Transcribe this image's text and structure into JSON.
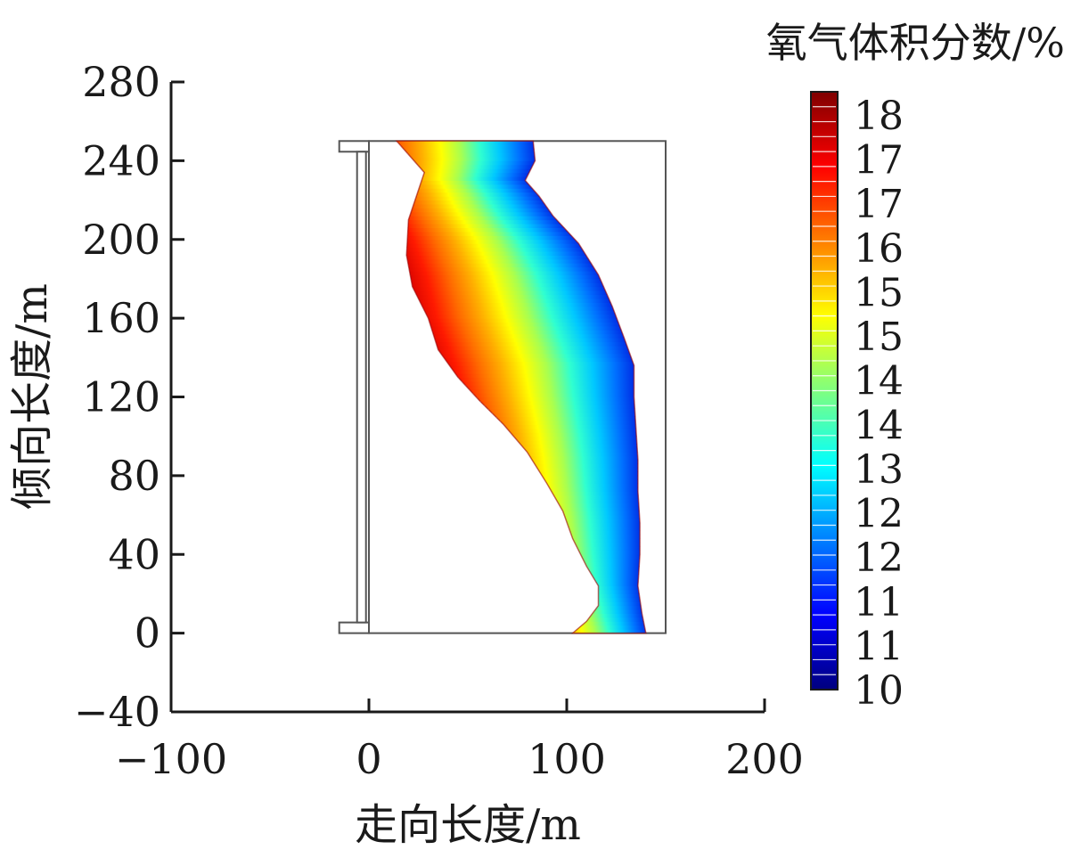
{
  "chart_data": {
    "type": "heatmap",
    "xlabel": "走向长度/m",
    "ylabel": "倾向长度/m",
    "xlim": [
      -100,
      200
    ],
    "ylim": [
      -40,
      280
    ],
    "xticks": [
      "−100",
      "0",
      "100",
      "200"
    ],
    "xtick_values": [
      -100,
      0,
      100,
      200
    ],
    "yticks": [
      "−40",
      "0",
      "40",
      "80",
      "120",
      "160",
      "200",
      "240",
      "280"
    ],
    "ytick_values": [
      -40,
      0,
      40,
      80,
      120,
      160,
      200,
      240,
      280
    ],
    "colorbar": {
      "title": "氧气体积分数/%",
      "range": [
        10,
        18.3
      ],
      "tick_labels": [
        "18",
        "17",
        "17",
        "16",
        "15",
        "15",
        "14",
        "14",
        "13",
        "12",
        "12",
        "11",
        "11",
        "10"
      ],
      "colors": [
        "#00007f",
        "#0000ff",
        "#007fff",
        "#00ffff",
        "#7fff7f",
        "#ffff00",
        "#ff7f00",
        "#ff0000",
        "#7f0000"
      ]
    },
    "domain_box": {
      "x": [
        0,
        150
      ],
      "y": [
        0,
        250
      ]
    },
    "side_structure": {
      "x": [
        -15,
        -2
      ],
      "y": [
        0,
        250
      ]
    },
    "gas_region": {
      "left_edge": [
        [
          0,
          103
        ],
        [
          6,
          110
        ],
        [
          14,
          116
        ],
        [
          24,
          116
        ],
        [
          34,
          110
        ],
        [
          48,
          103
        ],
        [
          62,
          98
        ],
        [
          76,
          90
        ],
        [
          92,
          80
        ],
        [
          106,
          68
        ],
        [
          118,
          56
        ],
        [
          130,
          45
        ],
        [
          144,
          35
        ],
        [
          160,
          30
        ],
        [
          176,
          22
        ],
        [
          192,
          19
        ],
        [
          210,
          20
        ],
        [
          222,
          24
        ],
        [
          234,
          28
        ],
        [
          250,
          14
        ]
      ],
      "right_edge": [
        [
          0,
          140
        ],
        [
          10,
          138
        ],
        [
          24,
          136
        ],
        [
          40,
          137
        ],
        [
          56,
          137
        ],
        [
          72,
          136
        ],
        [
          88,
          136
        ],
        [
          104,
          135
        ],
        [
          120,
          134
        ],
        [
          136,
          134
        ],
        [
          150,
          129
        ],
        [
          166,
          123
        ],
        [
          182,
          116
        ],
        [
          198,
          106
        ],
        [
          212,
          93
        ],
        [
          222,
          86
        ],
        [
          230,
          79
        ],
        [
          240,
          84
        ],
        [
          250,
          83
        ]
      ],
      "centerline": [
        [
          0,
          118
        ],
        [
          20,
          108
        ],
        [
          40,
          98
        ],
        [
          60,
          92
        ],
        [
          80,
          86
        ],
        [
          100,
          80
        ],
        [
          120,
          72
        ],
        [
          140,
          64
        ],
        [
          160,
          56
        ],
        [
          180,
          52
        ],
        [
          200,
          46
        ],
        [
          220,
          38
        ],
        [
          240,
          33
        ],
        [
          250,
          32
        ]
      ]
    }
  }
}
